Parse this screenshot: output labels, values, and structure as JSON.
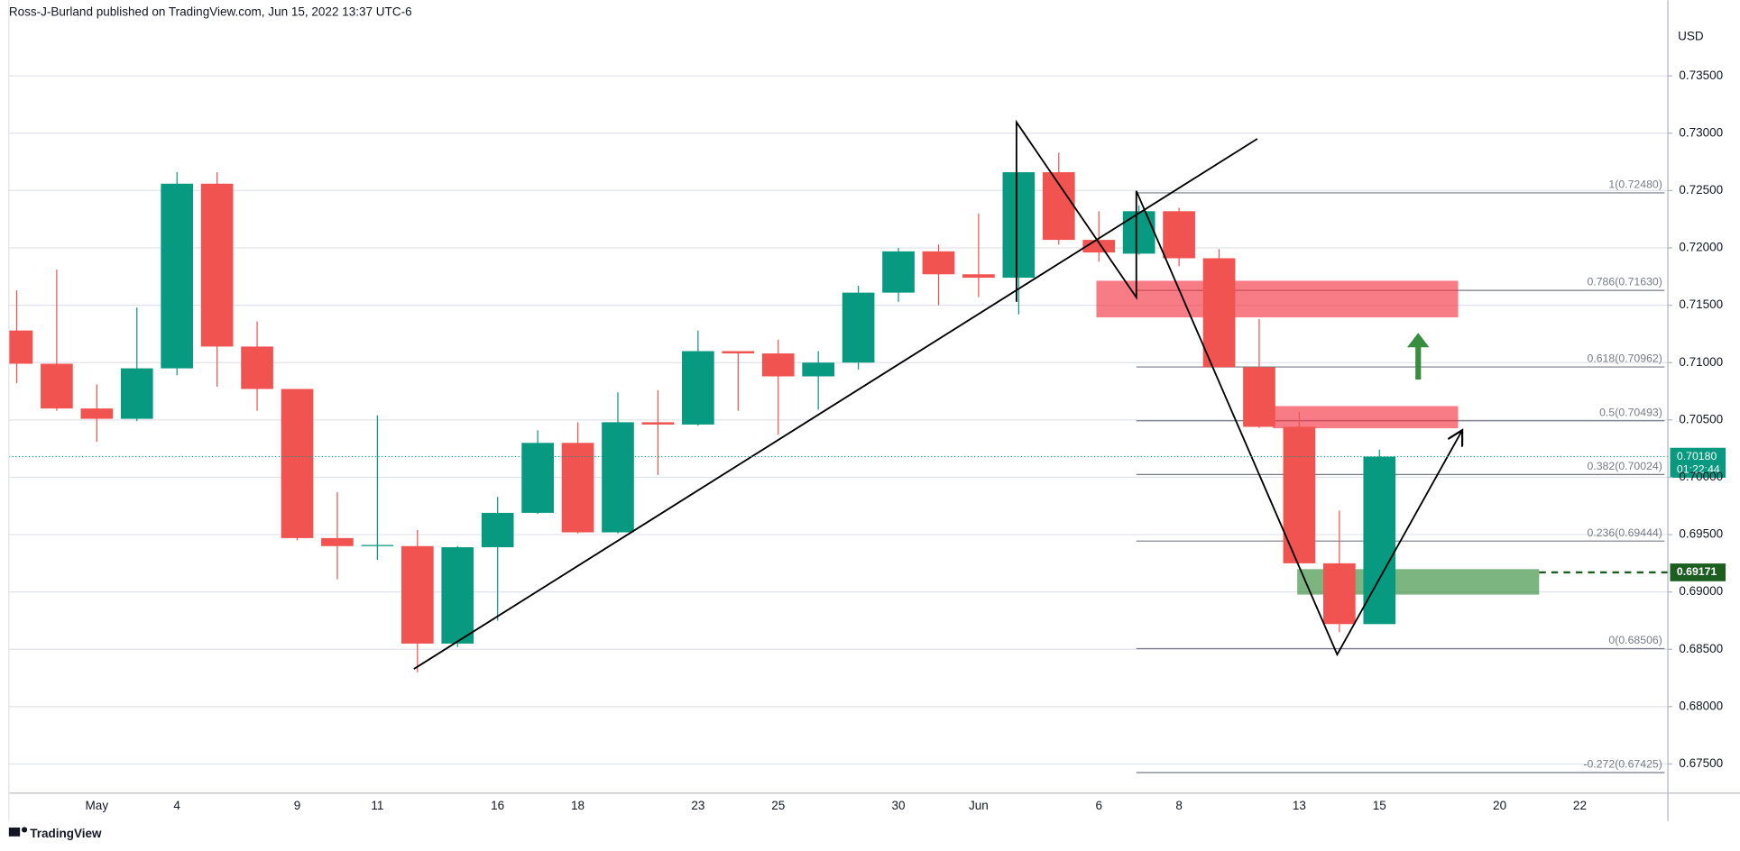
{
  "header": {
    "text": "Ross-J-Burland published on TradingView.com, Jun 15, 2022 13:37 UTC-6"
  },
  "footer": {
    "brand": "TradingView"
  },
  "chart_data": {
    "type": "candlestick",
    "unit": "USD",
    "up_color": "#089981",
    "down_color": "#f05350",
    "grid": true,
    "categories": [
      null,
      null,
      "May",
      null,
      "4",
      null,
      null,
      "9",
      null,
      "11",
      null,
      null,
      "16",
      null,
      "18",
      null,
      null,
      "23",
      null,
      "25",
      null,
      null,
      "30",
      null,
      "Jun",
      null,
      null,
      "6",
      null,
      "8",
      null,
      null,
      "13",
      null,
      "15",
      null,
      null,
      "20",
      null,
      "22",
      null,
      null
    ],
    "open": [
      0.7128,
      0.7099,
      0.706,
      0.7051,
      0.7095,
      0.7256,
      0.7114,
      0.7077,
      0.6947,
      0.694,
      0.694,
      0.6855,
      0.6939,
      0.6969,
      0.703,
      0.6952,
      0.7048,
      0.7046,
      0.711,
      0.7108,
      0.7088,
      0.71,
      0.7161,
      0.7197,
      0.7177,
      0.7174,
      0.7266,
      0.7207,
      0.7195,
      0.7232,
      0.7191,
      0.7096,
      0.7044,
      0.6925,
      0.6872,
      null,
      null,
      null,
      null,
      null,
      null,
      null
    ],
    "high": [
      0.7163,
      0.7181,
      0.7081,
      0.7148,
      0.7266,
      0.7266,
      0.7136,
      0.7077,
      0.6987,
      0.7054,
      0.6954,
      0.694,
      0.6983,
      0.7041,
      0.7048,
      0.7074,
      0.7076,
      0.7128,
      0.711,
      0.712,
      0.711,
      0.7167,
      0.72,
      0.7203,
      0.723,
      0.7266,
      0.7283,
      0.7232,
      0.7237,
      0.7235,
      0.7199,
      0.7138,
      0.7057,
      0.6971,
      0.7024,
      null,
      null,
      null,
      null,
      null,
      null,
      null
    ],
    "low": [
      0.7082,
      0.7058,
      0.7031,
      0.7049,
      0.7089,
      0.7079,
      0.7058,
      0.6945,
      0.6911,
      0.6928,
      0.683,
      0.6852,
      0.6875,
      0.6968,
      0.6951,
      0.6951,
      0.7002,
      0.7045,
      0.7058,
      0.7037,
      0.7059,
      0.7094,
      0.7153,
      0.715,
      0.7157,
      0.7142,
      0.7203,
      0.7188,
      0.7194,
      0.7184,
      0.7096,
      0.7043,
      0.6925,
      0.6865,
      0.6872,
      null,
      null,
      null,
      null,
      null,
      null,
      null
    ],
    "close": [
      0.7099,
      0.706,
      0.7051,
      0.7095,
      0.7256,
      0.7114,
      0.7077,
      0.6947,
      0.694,
      0.6941,
      0.6855,
      0.6939,
      0.6969,
      0.703,
      0.6952,
      0.7048,
      0.7046,
      0.711,
      0.7108,
      0.7088,
      0.71,
      0.7161,
      0.7197,
      0.7177,
      0.7174,
      0.7266,
      0.7207,
      0.7196,
      0.7232,
      0.7191,
      0.7096,
      0.7044,
      0.6925,
      0.6872,
      0.7018,
      null,
      null,
      null,
      null,
      null,
      null,
      null
    ],
    "ylim": [
      0.67246,
      0.73986
    ],
    "yticks": [
      {
        "value": 0.675,
        "label": "0.67500"
      },
      {
        "value": 0.68,
        "label": "0.68000"
      },
      {
        "value": 0.685,
        "label": "0.68500"
      },
      {
        "value": 0.69,
        "label": "0.69000"
      },
      {
        "value": 0.695,
        "label": "0.69500"
      },
      {
        "value": 0.7,
        "label": "0.70000"
      },
      {
        "value": 0.705,
        "label": "0.70500"
      },
      {
        "value": 0.71,
        "label": "0.71000"
      },
      {
        "value": 0.715,
        "label": "0.71500"
      },
      {
        "value": 0.72,
        "label": "0.72000"
      },
      {
        "value": 0.725,
        "label": "0.72500"
      },
      {
        "value": 0.73,
        "label": "0.73000"
      },
      {
        "value": 0.735,
        "label": "0.73500"
      }
    ],
    "fib_levels": [
      {
        "value": 0.7248,
        "label": "1(0.72480)"
      },
      {
        "value": 0.7163,
        "label": "0.786(0.71630)"
      },
      {
        "value": 0.70962,
        "label": "0.618(0.70962)"
      },
      {
        "value": 0.70493,
        "label": "0.5(0.70493)"
      },
      {
        "value": 0.70024,
        "label": "0.382(0.70024)"
      },
      {
        "value": 0.69444,
        "label": "0.236(0.69444)"
      },
      {
        "value": 0.68506,
        "label": "0(0.68506)"
      },
      {
        "value": 0.67425,
        "label": "-0.272(0.67425)"
      }
    ],
    "last_price": {
      "value": 0.7018,
      "label": "0.70180",
      "countdown": "01:22:44",
      "color": "#089981"
    },
    "level_line": {
      "value": 0.69171,
      "label": "0.69171",
      "color": "#1b5e20"
    }
  }
}
